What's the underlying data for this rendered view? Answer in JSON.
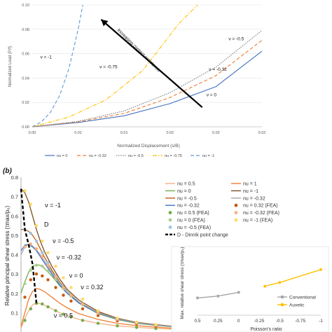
{
  "chart_data": [
    {
      "type": "line",
      "panel_label": "",
      "xlabel": "Normalized Displacement (s/B)",
      "ylabel": "Normalized Load (P/f)",
      "xlim": [
        0,
        0.025
      ],
      "ylim": [
        0,
        0.1
      ],
      "x_ticks": [
        0,
        0.005,
        0.01,
        0.015,
        0.02,
        0.025
      ],
      "x_tick_labels": [
        "0.00",
        "0.01",
        "0.01",
        "0.02",
        "0.02",
        "0.02"
      ],
      "y_ticks": [
        0,
        0.02,
        0.04,
        0.06,
        0.08,
        0.1
      ],
      "y_tick_labels": [
        "0.00",
        "0.02",
        "0.04",
        "0.06",
        "0.08",
        "0.10"
      ],
      "grid": "horizontal",
      "legend_position": "bottom",
      "series": [
        {
          "name": "nu = 0",
          "color": "#4472c4",
          "dash": "solid",
          "x": [
            0,
            0.005,
            0.01,
            0.015,
            0.02,
            0.025
          ],
          "y": [
            0,
            0.0035,
            0.009,
            0.019,
            0.033,
            0.062
          ]
        },
        {
          "name": "nu = -0.32",
          "color": "#ed7d31",
          "dash": "dashed",
          "x": [
            0,
            0.005,
            0.01,
            0.015,
            0.02,
            0.025
          ],
          "y": [
            0,
            0.004,
            0.011,
            0.024,
            0.042,
            0.071
          ]
        },
        {
          "name": "nu = -0.5",
          "color": "#7f7f7f",
          "dash": "dotted",
          "x": [
            0,
            0.005,
            0.01,
            0.015,
            0.02,
            0.025
          ],
          "y": [
            0,
            0.0045,
            0.013,
            0.028,
            0.049,
            0.079
          ]
        },
        {
          "name": "nu = -0.75",
          "color": "#ffc000",
          "dash": "dashdot",
          "x": [
            0,
            0.004,
            0.008,
            0.012,
            0.016,
            0.018
          ],
          "y": [
            0,
            0.008,
            0.022,
            0.046,
            0.085,
            0.1
          ]
        },
        {
          "name": "nu = -1",
          "color": "#5b9bd5",
          "dash": "dashed",
          "x": [
            0,
            0.001,
            0.002,
            0.003,
            0.004,
            0.005,
            0.0055
          ],
          "y": [
            0,
            0.004,
            0.012,
            0.026,
            0.048,
            0.08,
            0.1
          ]
        }
      ],
      "annotations": [
        {
          "text": "ν = -1",
          "x": 0.0015,
          "y": 0.056
        },
        {
          "text": "ν = -0.75",
          "x": 0.0083,
          "y": 0.048
        },
        {
          "text": "ν = -0.5",
          "x": 0.0222,
          "y": 0.071
        },
        {
          "text": "ν = -0.32",
          "x": 0.0202,
          "y": 0.046
        },
        {
          "text": "ν = 0",
          "x": 0.0195,
          "y": 0.025
        },
        {
          "text": "Increasing contact resistence",
          "x": 0.0115,
          "y": 0.062,
          "rotation_deg": 45
        }
      ],
      "arrow": {
        "from": [
          0.0185,
          0.016
        ],
        "to": [
          0.0075,
          0.088
        ]
      }
    },
    {
      "type": "line",
      "panel_label": "(b)",
      "ylabel": "Relative principal shear stress (τmax/p₀)",
      "xlim": [
        0,
        4
      ],
      "ylim": [
        0,
        0.8
      ],
      "y_ticks": [
        0,
        0.1,
        0.2,
        0.3,
        0.4,
        0.5,
        0.6,
        0.7,
        0.8
      ],
      "y_tick_labels": [
        "0",
        "0.1",
        "0.2",
        "0.3",
        "0.4",
        "0.5",
        "0.6",
        "0.7",
        "0.8"
      ],
      "legend_position": "top-right",
      "series": [
        {
          "name": "nu = 0.5",
          "color": "#f4b183",
          "style": "line",
          "x": [
            0,
            0.1,
            0.2,
            0.3,
            0.4,
            0.5,
            0.6,
            0.8,
            1.0,
            1.2,
            1.5,
            2.0,
            2.5,
            3.0,
            3.5,
            4.0
          ],
          "y": [
            0.02,
            0.07,
            0.11,
            0.14,
            0.15,
            0.146,
            0.14,
            0.12,
            0.1,
            0.085,
            0.065,
            0.045,
            0.032,
            0.024,
            0.018,
            0.014
          ]
        },
        {
          "name": "nu = 0",
          "color": "#70ad47",
          "style": "line",
          "x": [
            0,
            0.1,
            0.2,
            0.3,
            0.4,
            0.5,
            0.6,
            0.8,
            1.0,
            1.2,
            1.5,
            2.0,
            2.5,
            3.0,
            3.5,
            4.0
          ],
          "y": [
            0.2,
            0.26,
            0.31,
            0.34,
            0.348,
            0.345,
            0.33,
            0.29,
            0.24,
            0.2,
            0.15,
            0.095,
            0.064,
            0.045,
            0.034,
            0.026
          ]
        },
        {
          "name": "nu = -0.5",
          "color": "#c55a11",
          "style": "line",
          "x": [
            0,
            0.1,
            0.2,
            0.3,
            0.4,
            0.5,
            0.6,
            0.8,
            1.0,
            1.2,
            1.5,
            2.0,
            2.5,
            3.0,
            3.5,
            4.0
          ],
          "y": [
            0.53,
            0.53,
            0.52,
            0.5,
            0.47,
            0.43,
            0.39,
            0.32,
            0.26,
            0.21,
            0.155,
            0.1,
            0.068,
            0.048,
            0.036,
            0.028
          ]
        },
        {
          "name": "nu = -0.32",
          "color": "#4472c4",
          "style": "line",
          "x": [
            0,
            0.1,
            0.2,
            0.3,
            0.4,
            0.5,
            0.6,
            0.8,
            1.0,
            1.2,
            1.5,
            2.0,
            2.5,
            3.0,
            3.5,
            4.0
          ],
          "y": [
            0.42,
            0.45,
            0.452,
            0.44,
            0.42,
            0.39,
            0.36,
            0.3,
            0.245,
            0.2,
            0.15,
            0.097,
            0.066,
            0.047,
            0.035,
            0.027
          ]
        },
        {
          "name": "nu = 0.5 (FEA)",
          "color": "#70ad47",
          "style": "marker",
          "x": [
            0.1,
            0.25,
            0.4,
            0.55,
            0.7,
            0.9,
            1.1,
            1.3,
            1.6,
            2.0,
            2.5,
            3.0,
            3.5
          ],
          "y": [
            0.06,
            0.12,
            0.148,
            0.145,
            0.13,
            0.11,
            0.092,
            0.078,
            0.06,
            0.045,
            0.032,
            0.024,
            0.018
          ]
        },
        {
          "name": "nu = 0 (FEA)",
          "color": "#a9d18e",
          "style": "marker",
          "x": [
            0.1,
            0.25,
            0.4,
            0.55,
            0.7,
            0.9,
            1.1,
            1.3,
            1.6,
            2.0,
            2.5,
            3.0,
            3.5
          ],
          "y": [
            0.25,
            0.32,
            0.345,
            0.34,
            0.315,
            0.27,
            0.225,
            0.185,
            0.14,
            0.097,
            0.065,
            0.046,
            0.034
          ]
        },
        {
          "name": "nu = -0.5 (FEA)",
          "color": "#9dc3e6",
          "style": "marker",
          "x": [
            0.1,
            0.25,
            0.4,
            0.55,
            0.7,
            0.9,
            1.1,
            1.3,
            1.6,
            2.0,
            2.5,
            3.0,
            3.5
          ],
          "y": [
            0.53,
            0.51,
            0.47,
            0.41,
            0.36,
            0.29,
            0.235,
            0.19,
            0.145,
            0.1,
            0.068,
            0.048,
            0.036
          ]
        },
        {
          "name": "nu = 1",
          "color": "#ed7d31",
          "style": "line",
          "x": [
            0,
            0.1,
            0.2,
            0.3,
            0.4,
            0.5,
            0.6,
            0.8,
            1.0,
            1.2,
            1.5,
            2.0,
            2.5,
            3.0,
            3.5,
            4.0
          ],
          "y": [
            0.03,
            0.1,
            0.17,
            0.21,
            0.225,
            0.22,
            0.21,
            0.18,
            0.15,
            0.125,
            0.095,
            0.065,
            0.045,
            0.033,
            0.025,
            0.019
          ]
        },
        {
          "name": "nu = -1",
          "color": "#7f4f1f",
          "style": "line",
          "x": [
            0,
            0.1,
            0.2,
            0.3,
            0.4,
            0.5,
            0.6,
            0.8,
            1.0,
            1.2,
            1.5,
            2.0,
            2.5,
            3.0,
            3.5,
            4.0
          ],
          "y": [
            0.74,
            0.72,
            0.67,
            0.6,
            0.53,
            0.47,
            0.42,
            0.34,
            0.275,
            0.22,
            0.165,
            0.106,
            0.071,
            0.05,
            0.038,
            0.029
          ]
        },
        {
          "name": "nu = -0.32",
          "color": "#a5a5a5",
          "style": "line",
          "x": [
            0,
            0.1,
            0.2,
            0.3,
            0.4,
            0.5,
            0.6,
            0.8,
            1.0,
            1.2,
            1.5,
            2.0,
            2.5,
            3.0,
            3.5,
            4.0
          ],
          "y": [
            0.4,
            0.44,
            0.455,
            0.445,
            0.425,
            0.4,
            0.37,
            0.31,
            0.255,
            0.21,
            0.155,
            0.1,
            0.068,
            0.048,
            0.036,
            0.028
          ]
        },
        {
          "name": "nu = 0.32 (FEA)",
          "color": "#c55a11",
          "style": "marker",
          "x": [
            0.1,
            0.25,
            0.4,
            0.55,
            0.7,
            0.9,
            1.1,
            1.3,
            1.6,
            2.0,
            2.5,
            3.0,
            3.5
          ],
          "y": [
            0.18,
            0.27,
            0.3,
            0.29,
            0.27,
            0.23,
            0.19,
            0.16,
            0.12,
            0.085,
            0.058,
            0.042,
            0.031
          ]
        },
        {
          "name": "nu = -0.32 (FEA)",
          "color": "#f4b183",
          "style": "marker",
          "x": [
            0.1,
            0.25,
            0.4,
            0.55,
            0.7,
            0.9,
            1.1,
            1.3,
            1.6,
            2.0,
            2.5,
            3.0,
            3.5
          ],
          "y": [
            0.44,
            0.455,
            0.43,
            0.39,
            0.345,
            0.285,
            0.23,
            0.19,
            0.145,
            0.098,
            0.066,
            0.047,
            0.035
          ]
        },
        {
          "name": "nu = -1 (FEA)",
          "color": "#ffd966",
          "style": "marker",
          "x": [
            0.1,
            0.25,
            0.4,
            0.55,
            0.7,
            0.9,
            1.1,
            1.3,
            1.6,
            2.0,
            2.5,
            3.0,
            3.5
          ],
          "y": [
            0.73,
            0.66,
            0.55,
            0.47,
            0.41,
            0.34,
            0.28,
            0.23,
            0.17,
            0.11,
            0.072,
            0.051,
            0.038
          ]
        },
        {
          "name": "D - Dinnik point change",
          "color": "#000000",
          "style": "dashed",
          "x": [
            0,
            0.1,
            0.2,
            0.3,
            0.4
          ],
          "y": [
            0.74,
            0.53,
            0.45,
            0.35,
            0.15
          ]
        }
      ],
      "annotations": [
        {
          "text": "ν = -1",
          "x": 0.62,
          "y": 0.645
        },
        {
          "text": "D",
          "x": 0.6,
          "y": 0.545
        },
        {
          "text": "ν = -0.5",
          "x": 0.82,
          "y": 0.46
        },
        {
          "text": "ν = -0.32",
          "x": 0.92,
          "y": 0.375
        },
        {
          "text": "ν = 0",
          "x": 1.25,
          "y": 0.28
        },
        {
          "text": "ν = 0.32",
          "x": 1.55,
          "y": 0.22
        },
        {
          "text": "ν = 0.5",
          "x": 0.85,
          "y": 0.075
        }
      ]
    },
    {
      "type": "line",
      "panel_label": "inset",
      "xlabel": "Poisson's ratio",
      "ylabel": "Max. relative shear stress (τmax/p₀)",
      "xlim": [
        0.5,
        -1
      ],
      "ylim": [
        0,
        1
      ],
      "x_ticks": [
        0.5,
        0.25,
        0,
        -0.25,
        -0.5,
        -0.75,
        -1
      ],
      "x_tick_labels": [
        "0.5",
        "0.25",
        "0",
        "-0.25",
        "-0.5",
        "-0.75",
        "-1"
      ],
      "legend_position": "bottom-right",
      "series": [
        {
          "name": "Conventional",
          "color": "#a5a5a5",
          "x": [
            0.5,
            0.25,
            0
          ],
          "y": [
            0.28,
            0.31,
            0.37
          ]
        },
        {
          "name": "Auxetic",
          "color": "#ffc000",
          "x": [
            -0.32,
            -0.5,
            -1
          ],
          "y": [
            0.47,
            0.53,
            0.74
          ]
        }
      ]
    }
  ]
}
